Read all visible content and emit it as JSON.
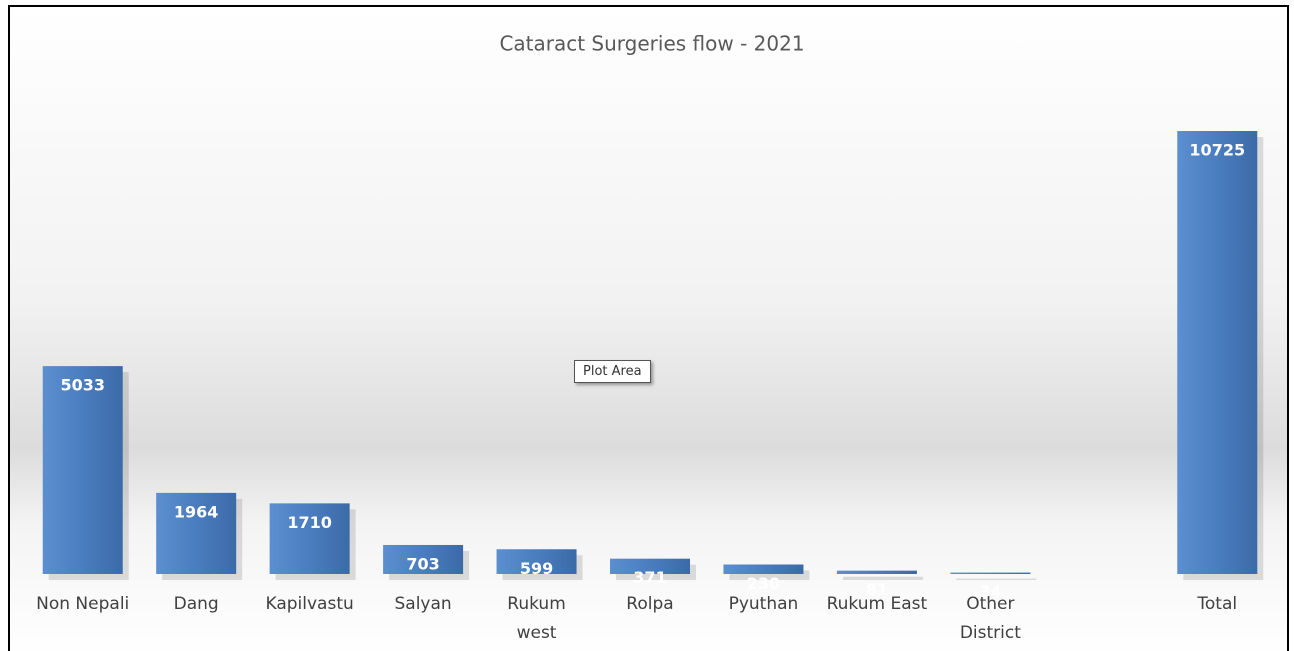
{
  "chart_data": {
    "type": "bar",
    "title": "Cataract Surgeries flow - 2021",
    "categories": [
      "Non Nepali",
      "Dang",
      "Kapilvastu",
      "Salyan",
      "Rukum west",
      "Rolpa",
      "Pyuthan",
      "Rukum East",
      "Other District",
      null,
      "Total"
    ],
    "values": [
      5033,
      1964,
      1710,
      703,
      599,
      371,
      230,
      81,
      34,
      null,
      10725
    ],
    "color": "#4a7dbf",
    "tooltip": "Plot Area"
  }
}
